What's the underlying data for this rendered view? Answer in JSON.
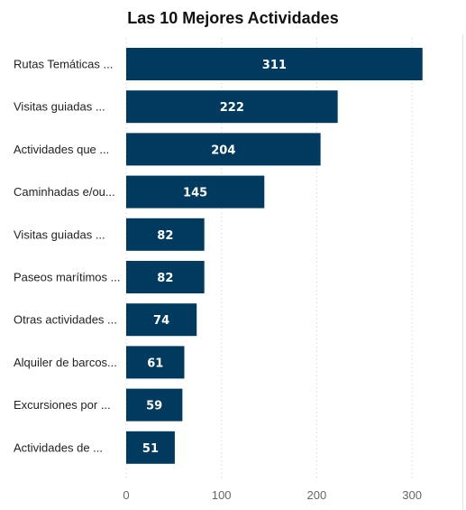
{
  "chart_data": {
    "type": "bar",
    "orientation": "horizontal",
    "title": "Las 10 Mejores Actividades",
    "categories": [
      "Rutas Temáticas ...",
      "Visitas guiadas ...",
      "Actividades que ...",
      "Caminhadas e/ou...",
      "Visitas guiadas ...",
      "Paseos marítimos ...",
      "Otras actividades ...",
      "Alquiler de barcos...",
      "Excursiones por ...",
      "Actividades de ..."
    ],
    "values": [
      311,
      222,
      204,
      145,
      82,
      82,
      74,
      61,
      59,
      51
    ],
    "xlim": [
      0,
      330
    ],
    "xticks": [
      0,
      100,
      200,
      300
    ],
    "grid": true,
    "legend": "none",
    "colors": {
      "bar": "#003a5f",
      "data_label": "#ffffff",
      "grid": "#d9d9d9"
    }
  }
}
